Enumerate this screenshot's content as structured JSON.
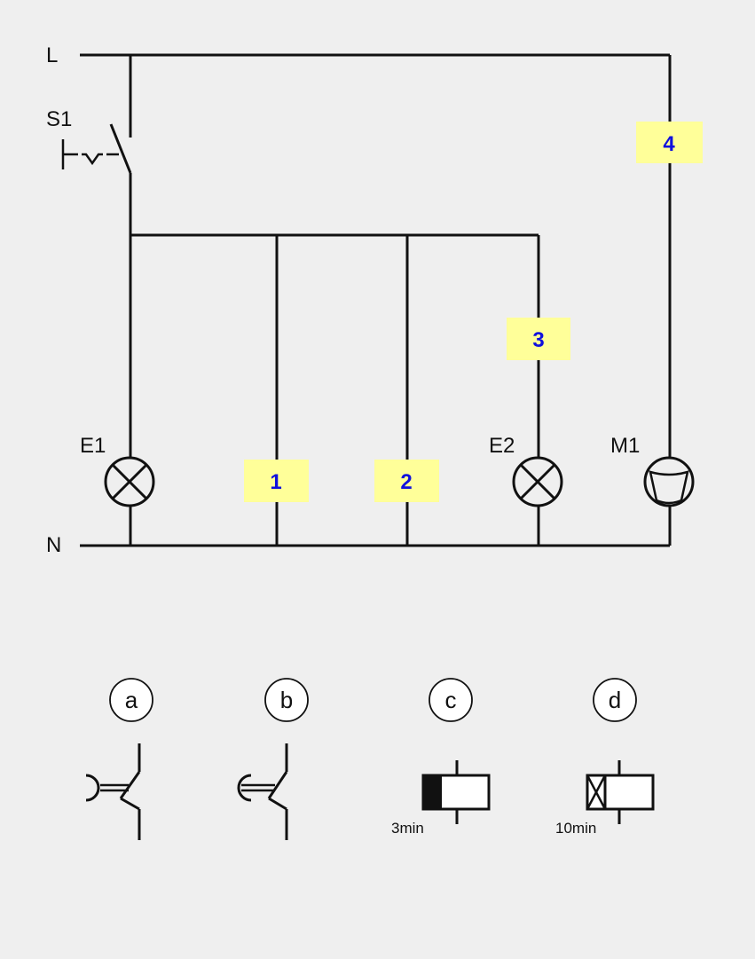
{
  "circuit": {
    "rails": {
      "line": "L",
      "neutral": "N"
    },
    "components": {
      "switch": "S1",
      "lamp_1": "E1",
      "lamp_2": "E2",
      "motor": "M1"
    },
    "slots": [
      {
        "id": "1"
      },
      {
        "id": "2"
      },
      {
        "id": "3"
      },
      {
        "id": "4"
      }
    ],
    "slot_color": "#ffff99",
    "slot_text_color": "#1010dd"
  },
  "options": [
    {
      "label": "a",
      "symbol": "pushbutton-nc-icon"
    },
    {
      "label": "b",
      "symbol": "pushbutton-no-icon"
    },
    {
      "label": "c",
      "symbol": "on-delay-relay-icon",
      "time": "3min"
    },
    {
      "label": "d",
      "symbol": "off-delay-relay-icon",
      "time": "10min"
    }
  ]
}
